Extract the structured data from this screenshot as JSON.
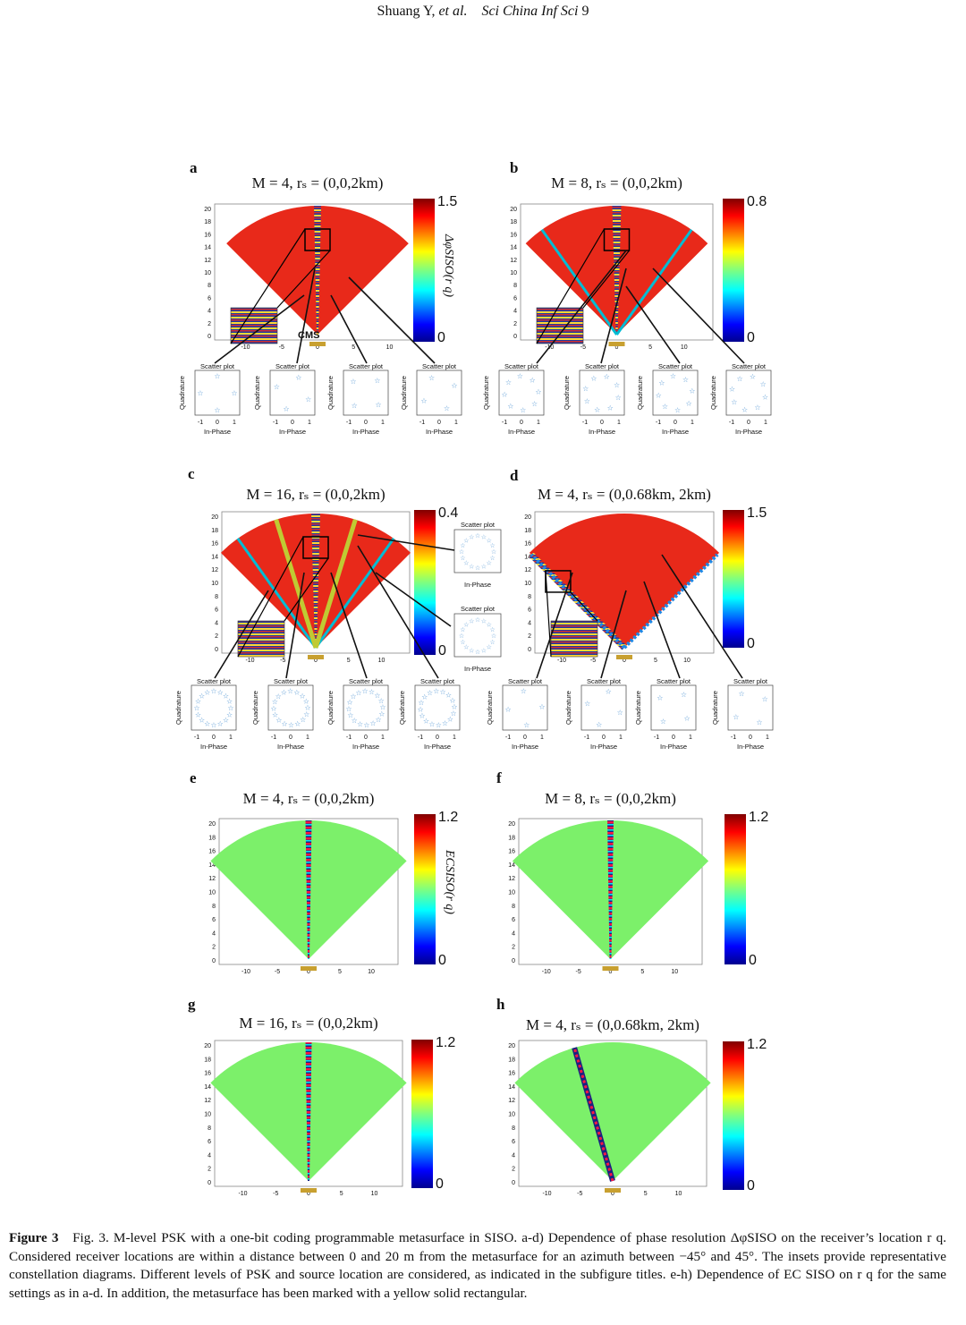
{
  "header": {
    "authors": "Shuang Y,",
    "etal": "et al.",
    "journal": "Sci China Inf Sci",
    "page": "9"
  },
  "panels": [
    {
      "letter": "a",
      "title": "M = 4, rₛ = (0,0,2km)",
      "cmax": "1.5",
      "cmin": "0",
      "cblabel": "ΔφSISO(r q)",
      "cms": "CMS",
      "beam": "center",
      "n": 4,
      "kind": "phase"
    },
    {
      "letter": "b",
      "title": "M = 8, rₛ = (0,0,2km)",
      "cmax": "0.8",
      "cmin": "0",
      "cblabel": "",
      "cms": "",
      "beam": "center",
      "n": 8,
      "kind": "phase"
    },
    {
      "letter": "c",
      "title": "M = 16, rₛ = (0,0,2km)",
      "cmax": "0.4",
      "cmin": "0",
      "cblabel": "",
      "cms": "",
      "beam": "center",
      "n": 16,
      "kind": "phase"
    },
    {
      "letter": "d",
      "title": "M = 4, rₛ = (0,0.68km, 2km)",
      "cmax": "1.5",
      "cmin": "0",
      "cblabel": "",
      "cms": "",
      "beam": "edges",
      "n": 4,
      "kind": "phase"
    },
    {
      "letter": "e",
      "title": "M = 4, rₛ = (0,0,2km)",
      "cmax": "1.2",
      "cmin": "0",
      "cblabel": "ECSISO(r q)",
      "cms": "",
      "beam": "center",
      "n": 4,
      "kind": "ec"
    },
    {
      "letter": "f",
      "title": "M = 8, rₛ = (0,0,2km)",
      "cmax": "1.2",
      "cmin": "0",
      "cblabel": "",
      "cms": "",
      "beam": "center",
      "n": 8,
      "kind": "ec"
    },
    {
      "letter": "g",
      "title": "M = 16, rₛ = (0,0,2km)",
      "cmax": "1.2",
      "cmin": "0",
      "cblabel": "",
      "cms": "",
      "beam": "center",
      "n": 16,
      "kind": "ec"
    },
    {
      "letter": "h",
      "title": "M = 4, rₛ = (0,0.68km, 2km)",
      "cmax": "1.2",
      "cmin": "0",
      "cblabel": "",
      "cms": "",
      "beam": "tilted",
      "n": 4,
      "kind": "ec"
    }
  ],
  "axes": {
    "yticks": [
      "0",
      "2",
      "4",
      "6",
      "8",
      "10",
      "12",
      "14",
      "16",
      "18",
      "20"
    ],
    "xticks": [
      "-10",
      "-5",
      "0",
      "5",
      "10"
    ],
    "scatter_title": "Scatter plot",
    "scatter_x": "In-Phase",
    "scatter_y": "Quadrature",
    "scatter_ticks": [
      "-1",
      "0",
      "1"
    ]
  },
  "colors": {
    "beam_red": "#e8291a",
    "ec_green": "#7cf06a",
    "metasurface": "#c8a030",
    "marker": "#5b9bd5"
  },
  "caption": {
    "label": "Figure 3",
    "p1": "Fig. 3. M-level PSK with a one-bit coding programmable metasurface in SISO. a-d) Dependence of phase resolution",
    "p2": "ΔφSISO on the receiver’s location r q. Considered receiver locations are within a distance between 0 and 20 m from the metasurface for an azimuth between −45° and 45°. The insets provide representative constellation diagrams. Different levels of PSK and source location are considered, as indicated in the subfigure titles. e-h) Dependence of EC SISO on r q for the same settings as in a-d. In addition, the metasurface has been marked with a yellow solid rectangular."
  }
}
